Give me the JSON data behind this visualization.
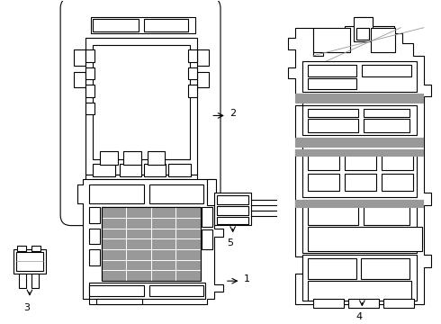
{
  "bg_color": "#ffffff",
  "line_color": "#000000",
  "gray_color": "#999999",
  "lw": 0.8,
  "labels": [
    "1",
    "2",
    "3",
    "4",
    "5"
  ]
}
